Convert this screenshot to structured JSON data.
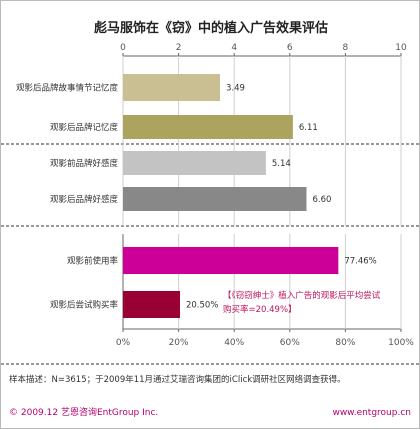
{
  "title": "彪马服饰在《窃》中的植入广告效果评估",
  "chart_data": [
    {
      "type": "bar",
      "orientation": "horizontal",
      "axis_position": "top",
      "xlim": [
        0,
        10
      ],
      "ticks": [
        "0",
        "2",
        "4",
        "6",
        "8",
        "10"
      ],
      "categories": [
        "观影后品牌故事情节记忆度",
        "观影后品牌记忆度",
        "观影前品牌好感度",
        "观影后品牌好感度"
      ],
      "values": [
        3.49,
        6.11,
        5.14,
        6.6
      ],
      "labels": [
        "3.49",
        "6.11",
        "5.14",
        "6.60"
      ],
      "colors": [
        "#c9bf93",
        "#aca35f",
        "#c3c3c3",
        "#888888"
      ]
    },
    {
      "type": "bar",
      "orientation": "horizontal",
      "axis_position": "bottom",
      "xlim": [
        0,
        100
      ],
      "ticks": [
        "0%",
        "20%",
        "40%",
        "60%",
        "80%",
        "100%"
      ],
      "categories": [
        "观影前使用率",
        "观影后尝试购买率"
      ],
      "values": [
        77.46,
        20.5
      ],
      "labels": [
        "77.46%",
        "20.50%"
      ],
      "colors": [
        "#cc0099",
        "#990033"
      ],
      "annotation": [
        "【《窃窃绅士》植入广告的观影后平均尝试",
        "购买率=20.49%】"
      ]
    }
  ],
  "note": "样本描述：N=3615；于2009年11月通过艾瑞咨询集团的iClick调研社区网络调查获得。",
  "footer": {
    "left": "© 2009.12 艺恩咨询EntGroup Inc.",
    "right": "www.entgroup.cn"
  }
}
